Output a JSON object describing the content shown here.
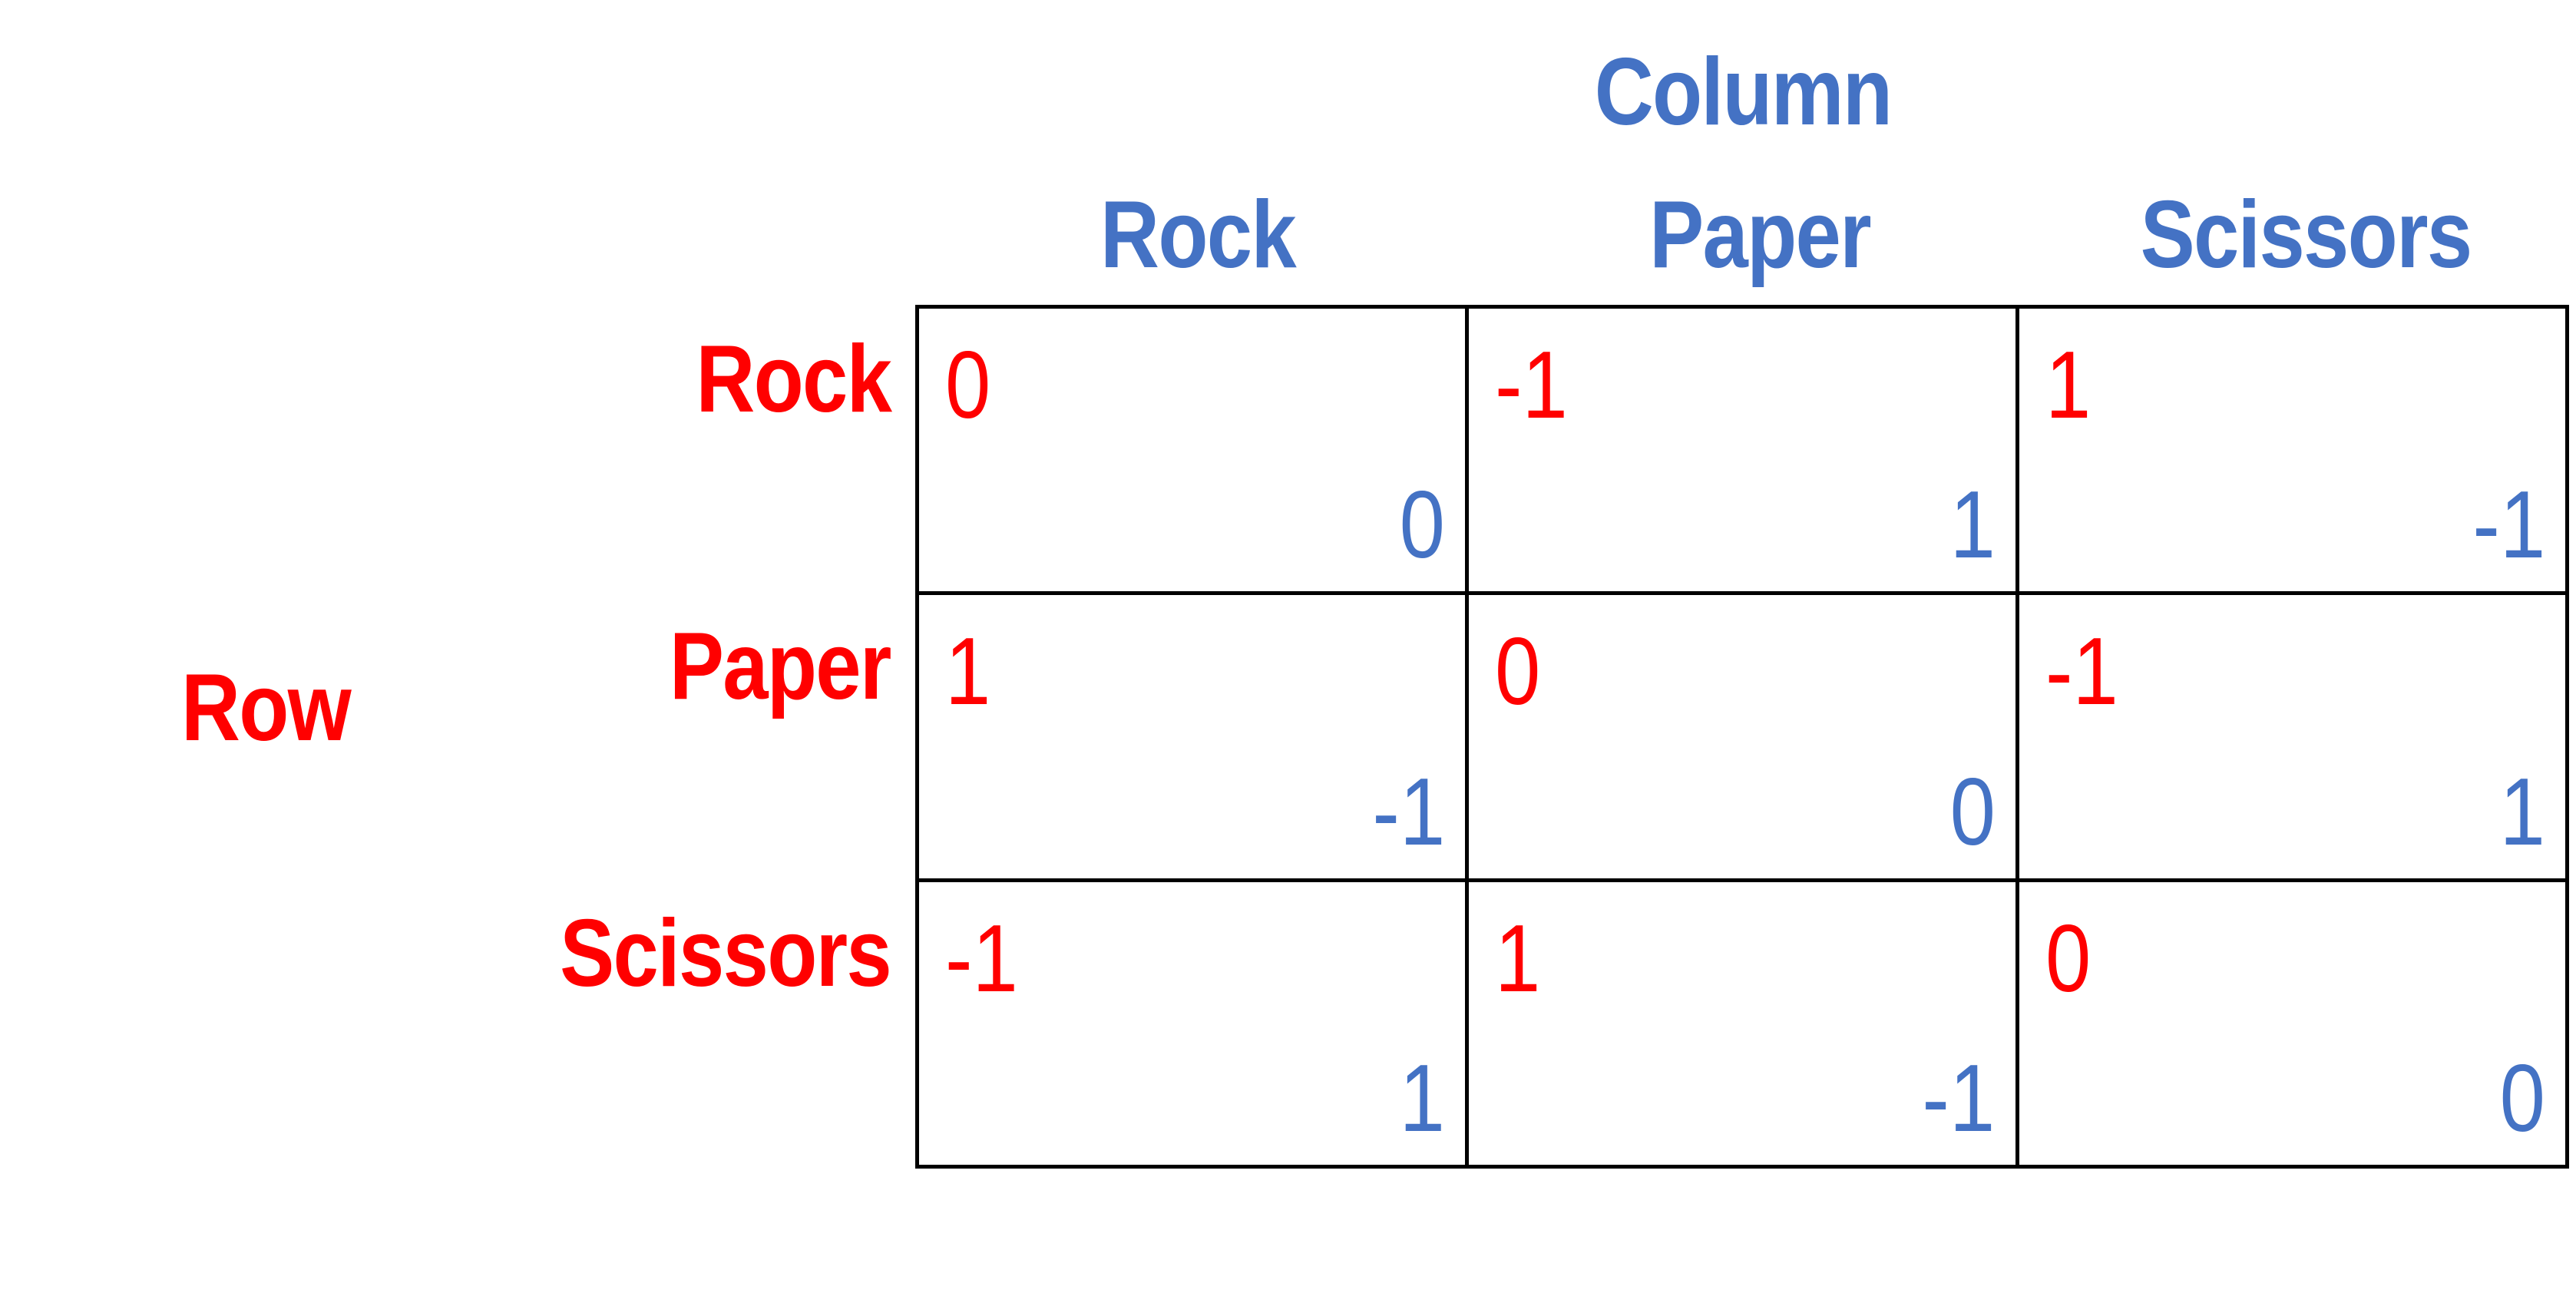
{
  "players": {
    "column": "Column",
    "row": "Row"
  },
  "colors": {
    "row_player": "#FF0000",
    "column_player": "#4472C4"
  },
  "column_strategies": [
    "Rock",
    "Paper",
    "Scissors"
  ],
  "row_strategies": [
    "Rock",
    "Paper",
    "Scissors"
  ],
  "payoffs": [
    [
      {
        "row": "0",
        "col": "0"
      },
      {
        "row": "-1",
        "col": "1"
      },
      {
        "row": "1",
        "col": "-1"
      }
    ],
    [
      {
        "row": "1",
        "col": "-1"
      },
      {
        "row": "0",
        "col": "0"
      },
      {
        "row": "-1",
        "col": "1"
      }
    ],
    [
      {
        "row": "-1",
        "col": "1"
      },
      {
        "row": "1",
        "col": "-1"
      },
      {
        "row": "0",
        "col": "0"
      }
    ]
  ]
}
